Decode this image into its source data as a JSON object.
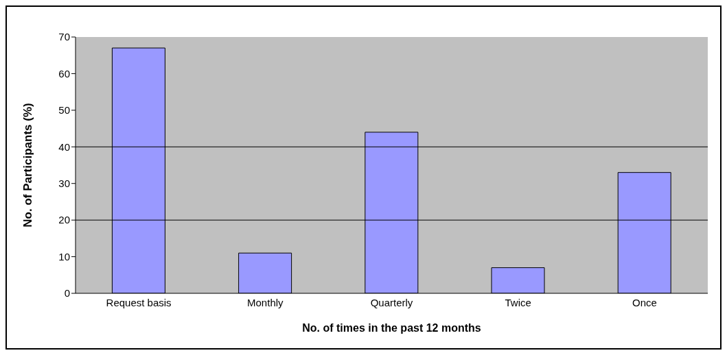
{
  "chart_data": {
    "type": "bar",
    "xlabel": "No. of times in the past 12 months",
    "ylabel": "No. of Participants (%)",
    "categories": [
      "Request basis",
      "Monthly",
      "Quarterly",
      "Twice",
      "Once"
    ],
    "values": [
      67,
      11,
      44,
      7,
      33
    ],
    "color": "#9999ff",
    "ylim": [
      0,
      70
    ],
    "yticks": [
      0,
      10,
      20,
      30,
      40,
      50,
      60,
      70
    ],
    "ref_lines": [
      {
        "axis": "y",
        "value": 20,
        "color": "#000000"
      },
      {
        "axis": "y",
        "value": 40,
        "color": "#000000"
      }
    ]
  }
}
